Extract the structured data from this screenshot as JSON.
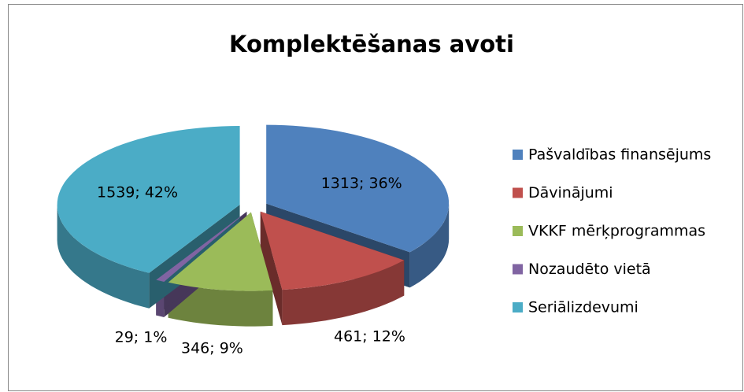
{
  "chart_data": {
    "type": "pie",
    "title": "Komplektēšanas avoti",
    "categories": [
      "Pašvaldības finansējums",
      "Dāvinājumi",
      "VKKF mērķprogrammas",
      "Nozaudēto vietā",
      "Seriālizdevumi"
    ],
    "values": [
      1313,
      461,
      346,
      29,
      1539
    ],
    "value_labels": [
      "1313; 36%",
      "461; 12%",
      "346; 9%",
      "29; 1%",
      "1539; 42%"
    ],
    "colors": [
      "#4f81bd",
      "#c0504d",
      "#9bbb59",
      "#8064a2",
      "#4bacc6"
    ],
    "legend": "right"
  }
}
